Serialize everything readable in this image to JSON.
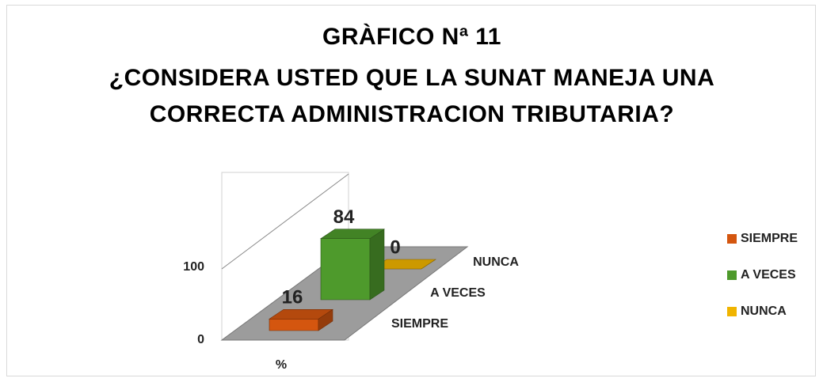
{
  "chart_data": {
    "type": "bar3d",
    "title": "GRÀFICO Nª 11",
    "subtitle": "¿CONSIDERA USTED QUE LA SUNAT MANEJA UNA CORRECTA ADMINISTRACION TRIBUTARIA?",
    "categories": [
      "%"
    ],
    "series": [
      {
        "name": "SIEMPRE",
        "color": "#d4560f",
        "values": [
          16
        ]
      },
      {
        "name": "A VECES",
        "color": "#4e9a2c",
        "values": [
          84
        ]
      },
      {
        "name": "NUNCA",
        "color": "#f0b400",
        "values": [
          0
        ]
      }
    ],
    "ylim": [
      0,
      100
    ],
    "yticks": [
      0,
      100
    ],
    "legend": "right"
  }
}
